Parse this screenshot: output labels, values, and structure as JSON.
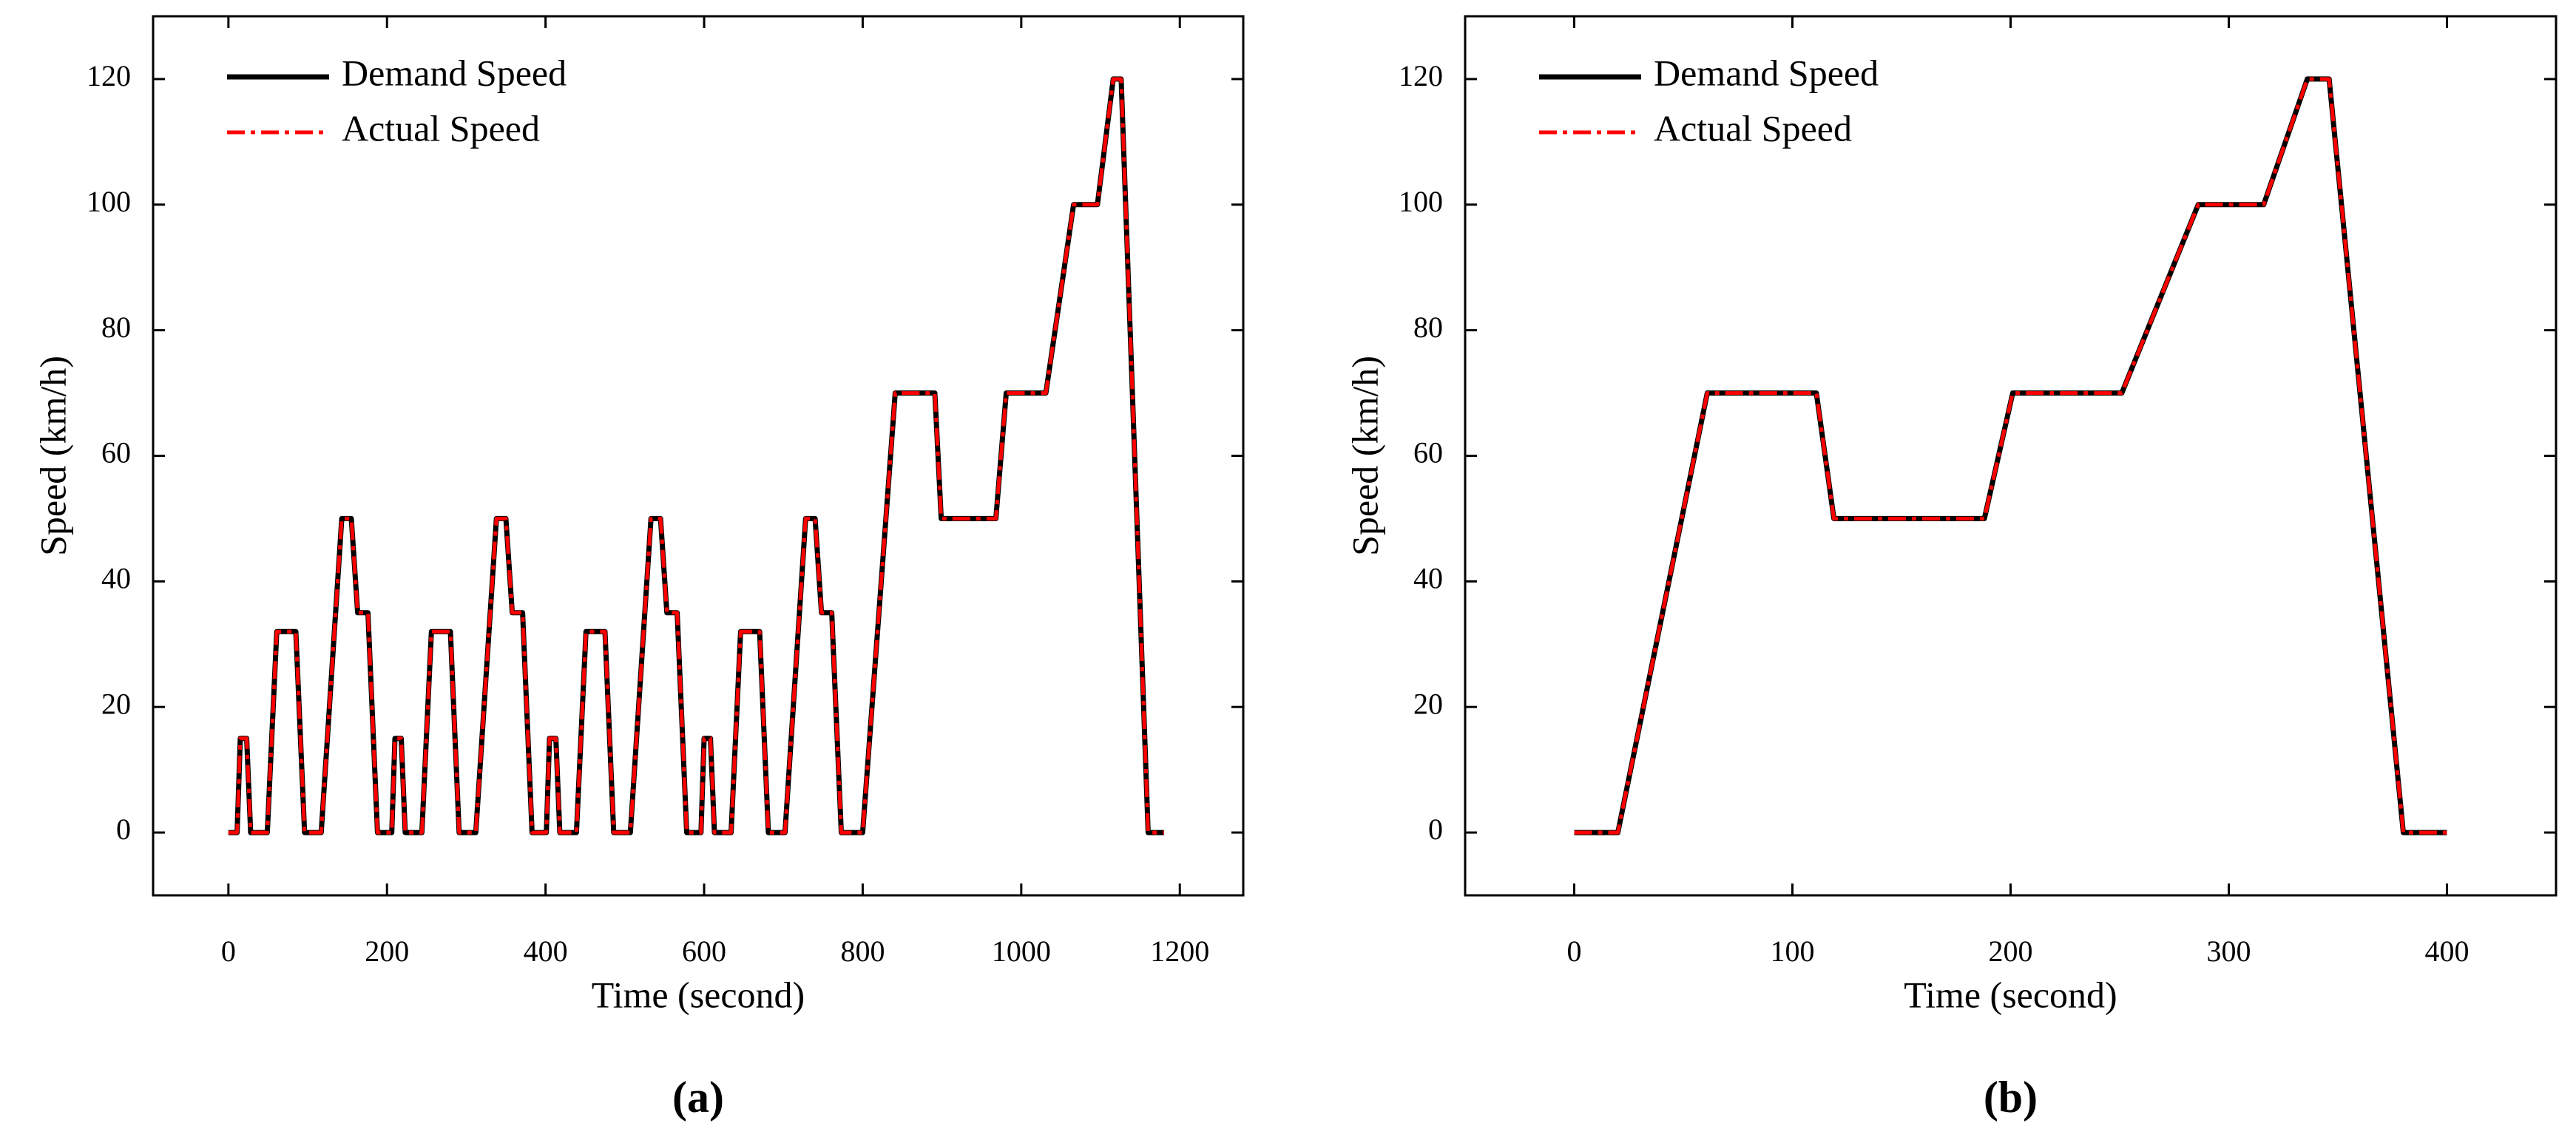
{
  "chart_data": [
    {
      "type": "line",
      "label": "(a)",
      "xlabel": "Time (second)",
      "ylabel": "Speed (km/h)",
      "x": [
        0,
        11,
        15,
        23,
        28,
        49,
        61,
        85,
        96,
        117,
        143,
        155,
        163,
        176,
        188,
        195,
        206,
        210,
        218,
        223,
        244,
        256,
        280,
        291,
        312,
        338,
        350,
        358,
        371,
        383,
        390,
        401,
        405,
        413,
        418,
        439,
        451,
        475,
        486,
        507,
        533,
        545,
        553,
        566,
        578,
        585,
        596,
        600,
        608,
        613,
        634,
        646,
        670,
        681,
        702,
        728,
        740,
        748,
        761,
        773,
        780,
        800,
        841,
        891,
        899,
        968,
        981,
        1031,
        1066,
        1096,
        1116,
        1126,
        1160,
        1180
      ],
      "series": [
        {
          "name": "Demand Speed",
          "color": "#000000",
          "values": [
            0,
            0,
            15,
            15,
            0,
            0,
            32,
            32,
            0,
            0,
            50,
            50,
            35,
            35,
            0,
            0,
            0,
            15,
            15,
            0,
            0,
            32,
            32,
            0,
            0,
            50,
            50,
            35,
            35,
            0,
            0,
            0,
            15,
            15,
            0,
            0,
            32,
            32,
            0,
            0,
            50,
            50,
            35,
            35,
            0,
            0,
            0,
            15,
            15,
            0,
            0,
            32,
            32,
            0,
            0,
            50,
            50,
            35,
            35,
            0,
            0,
            0,
            70,
            70,
            50,
            50,
            70,
            70,
            100,
            100,
            120,
            120,
            0,
            0
          ]
        },
        {
          "name": "Actual Speed",
          "color": "#ff0000",
          "values": [
            0,
            0,
            15,
            15,
            0,
            0,
            32,
            32,
            0,
            0,
            50,
            50,
            35,
            35,
            0,
            0,
            0,
            15,
            15,
            0,
            0,
            32,
            32,
            0,
            0,
            50,
            50,
            35,
            35,
            0,
            0,
            0,
            15,
            15,
            0,
            0,
            32,
            32,
            0,
            0,
            50,
            50,
            35,
            35,
            0,
            0,
            0,
            15,
            15,
            0,
            0,
            32,
            32,
            0,
            0,
            50,
            50,
            35,
            35,
            0,
            0,
            0,
            70,
            70,
            50,
            50,
            70,
            70,
            100,
            100,
            120,
            120,
            0,
            0
          ]
        }
      ],
      "xlim": [
        -95,
        1280
      ],
      "ylim": [
        -10,
        130
      ],
      "xticks": [
        0,
        200,
        400,
        600,
        800,
        1000,
        1200
      ],
      "yticks": [
        0,
        20,
        40,
        60,
        80,
        100,
        120
      ],
      "legend": "upper left"
    },
    {
      "type": "line",
      "label": "(b)",
      "xlabel": "Time (second)",
      "ylabel": "Speed (km/h)",
      "x": [
        0,
        20,
        61,
        111,
        119,
        188,
        201,
        251,
        286,
        316,
        336,
        346,
        380,
        400
      ],
      "series": [
        {
          "name": "Demand Speed",
          "color": "#000000",
          "values": [
            0,
            0,
            70,
            70,
            50,
            50,
            70,
            70,
            100,
            100,
            120,
            120,
            0,
            0
          ]
        },
        {
          "name": "Actual Speed",
          "color": "#ff0000",
          "values": [
            0,
            0,
            70,
            70,
            50,
            50,
            70,
            70,
            100,
            100,
            120,
            120,
            0,
            0
          ]
        }
      ],
      "xlim": [
        -50,
        450
      ],
      "ylim": [
        -10,
        130
      ],
      "xticks": [
        0,
        100,
        200,
        300,
        400
      ],
      "yticks": [
        0,
        20,
        40,
        60,
        80,
        100,
        120
      ],
      "legend": "upper left"
    }
  ]
}
